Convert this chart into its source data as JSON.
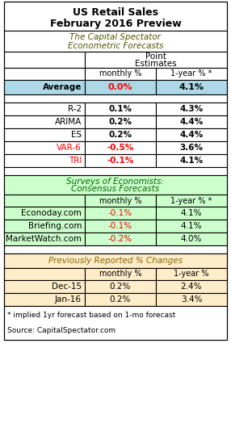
{
  "title_line1": "US Retail Sales",
  "title_line2": "February 2016 Preview",
  "section1_title_l1": "The Capital Spectator",
  "section1_title_l2": "Econometric Forecasts",
  "section2_title_l1": "Surveys of Economists:",
  "section2_title_l2": "Consensus Forecasts",
  "section3_title": "Previously Reported % Changes",
  "col_header1": "monthly %",
  "col_header2": "1-year % *",
  "col_header2_prev": "1-year %",
  "avg_row": [
    "Average",
    "0.0%",
    "4.1%"
  ],
  "econo_rows": [
    [
      "R-2",
      "0.1%",
      "4.3%"
    ],
    [
      "ARIMA",
      "0.2%",
      "4.4%"
    ],
    [
      "ES",
      "0.2%",
      "4.4%"
    ],
    [
      "VAR-6",
      "-0.5%",
      "3.6%"
    ],
    [
      "TRI",
      "-0.1%",
      "4.1%"
    ]
  ],
  "survey_rows": [
    [
      "Econoday.com",
      "-0.1%",
      "4.1%"
    ],
    [
      "Briefing.com",
      "-0.1%",
      "4.1%"
    ],
    [
      "MarketWatch.com",
      "-0.2%",
      "4.0%"
    ]
  ],
  "prev_rows": [
    [
      "Dec-15",
      "0.2%",
      "2.4%"
    ],
    [
      "Jan-16",
      "0.2%",
      "3.4%"
    ]
  ],
  "footnote": "* implied 1yr forecast based on 1-mo forecast",
  "source": "Source: CapitalSpectator.com",
  "color_white": "#ffffff",
  "color_green_bg": "#ccffcc",
  "color_tan_bg": "#ffecc8",
  "color_blue_avg": "#add8e6",
  "color_red": "#ff0000",
  "color_black": "#000000",
  "color_title_italic": "#555500",
  "color_green_italic": "#006600",
  "color_tan_italic": "#886600",
  "lw": 0.8
}
